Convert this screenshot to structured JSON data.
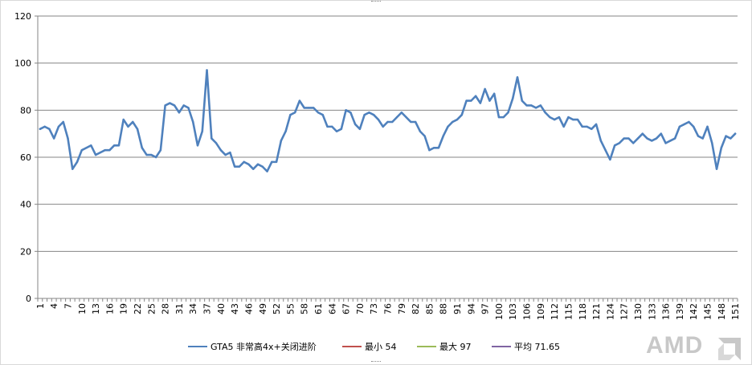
{
  "chart_data": {
    "type": "line",
    "title": "",
    "xlabel": "",
    "ylabel": "",
    "ylim": [
      0,
      120
    ],
    "yticks": [
      0,
      20,
      40,
      60,
      80,
      100,
      120
    ],
    "grid": true,
    "legend_position": "bottom",
    "x_tick_labels": [
      "1",
      "4",
      "7",
      "10",
      "13",
      "16",
      "19",
      "22",
      "25",
      "28",
      "31",
      "34",
      "37",
      "40",
      "43",
      "46",
      "49",
      "52",
      "55",
      "58",
      "61",
      "64",
      "67",
      "70",
      "73",
      "76",
      "79",
      "82",
      "85",
      "88",
      "91",
      "94",
      "97",
      "100",
      "103",
      "106",
      "109",
      "112",
      "115",
      "118",
      "121",
      "124",
      "127",
      "130",
      "133",
      "136",
      "139",
      "142",
      "145",
      "148",
      "151"
    ],
    "series": [
      {
        "name": "GTA5 非常高4x+关闭进阶",
        "color": "#4f81bd",
        "values": [
          72,
          73,
          72,
          68,
          73,
          75,
          68,
          55,
          58,
          63,
          64,
          65,
          61,
          62,
          63,
          63,
          65,
          65,
          76,
          73,
          75,
          72,
          64,
          61,
          61,
          60,
          63,
          82,
          83,
          82,
          79,
          82,
          81,
          75,
          65,
          71,
          97,
          68,
          66,
          63,
          61,
          62,
          56,
          56,
          58,
          57,
          55,
          57,
          56,
          54,
          58,
          58,
          67,
          71,
          78,
          79,
          84,
          81,
          81,
          81,
          79,
          78,
          73,
          73,
          71,
          72,
          80,
          79,
          74,
          72,
          78,
          79,
          78,
          76,
          73,
          75,
          75,
          77,
          79,
          77,
          75,
          75,
          71,
          69,
          63,
          64,
          64,
          69,
          73,
          75,
          76,
          78,
          84,
          84,
          86,
          83,
          89,
          84,
          87,
          77,
          77,
          79,
          85,
          94,
          84,
          82,
          82,
          81,
          82,
          79,
          77,
          76,
          77,
          73,
          77,
          76,
          76,
          73,
          73,
          72,
          74,
          67,
          63,
          59,
          65,
          66,
          68,
          68,
          66,
          68,
          70,
          68,
          67,
          68,
          70,
          66,
          67,
          68,
          73,
          74,
          75,
          73,
          69,
          68,
          73,
          66,
          55,
          64,
          69,
          68,
          70
        ]
      },
      {
        "name": "最小 54",
        "color": "#c0504d",
        "values": []
      },
      {
        "name": "最大 97",
        "color": "#9bbb59",
        "values": []
      },
      {
        "name": "平均 71.65",
        "color": "#8064a2",
        "values": []
      }
    ]
  },
  "watermark": {
    "text": "AMD",
    "color": "#c8c8c8"
  }
}
